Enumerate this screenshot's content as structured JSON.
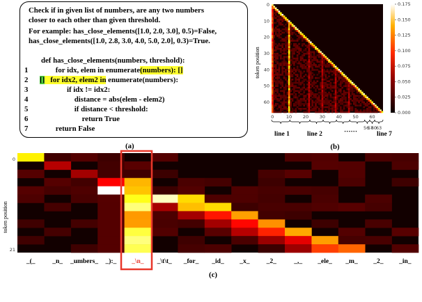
{
  "panel_a": {
    "caption": "(a)",
    "description_lines": [
      "Check if in given list of numbers, are any two numbers",
      "closer to each other than given threshold.",
      "For example: has_close_elements([1.0, 2.0, 3.0], 0.5)=False,",
      "has_close_elements([1.0, 2.8, 3.0, 4.0, 5.0, 2.0], 0.3)=True."
    ],
    "def_line": "def has_close_elements(numbers, threshold):",
    "code_lines": [
      {
        "num": "1",
        "pre": "    for idx, elem in enumerate",
        "hl": "(numbers): []",
        "post": ""
      },
      {
        "num": "2",
        "pre": "",
        "hl": "[]   for idx2, elem2 in",
        "post": " enumerate(numbers):"
      },
      {
        "num": "3",
        "text": "          if idx != idx2:"
      },
      {
        "num": "4",
        "text": "              distance = abs(elem - elem2)"
      },
      {
        "num": "5",
        "text": "              if distance < threshold:"
      },
      {
        "num": "6",
        "text": "                  return True"
      },
      {
        "num": "7",
        "text": "    return False"
      }
    ]
  },
  "panel_b": {
    "caption": "(b)",
    "ylabel": "token position",
    "x_ticks": [
      "0",
      "10",
      "20",
      "30",
      "40",
      "50",
      "60"
    ],
    "y_ticks": [
      "0",
      "10",
      "20",
      "30",
      "40",
      "50",
      "60"
    ],
    "colorbar_ticks": [
      "0.000",
      "0.025",
      "0.050",
      "0.075",
      "0.100",
      "0.125",
      "0.150",
      "0.175"
    ],
    "line_labels": [
      "line 1",
      "line 2",
      "······",
      "line 7"
    ],
    "small_ticks": [
      "56",
      "57",
      "60",
      "63"
    ]
  },
  "panel_c": {
    "caption": "(c)",
    "ylabel": "token position",
    "y_ticks": [
      "0",
      "21"
    ],
    "tokens": [
      "_(_",
      "_n_",
      "_umbers_",
      "_):_",
      "_\\n_",
      "_\\t\\t_",
      "_for_",
      "_id_",
      "_x_",
      "_2_",
      "_,_",
      "_ele_",
      "_m_",
      "_2_",
      "_in_"
    ],
    "highlighted_token": "_\\n_",
    "highlight_color": "#e8372a"
  },
  "chart_data": [
    {
      "type": "heatmap",
      "title": "",
      "ylabel": "token position",
      "x_range": [
        0,
        67
      ],
      "y_range": [
        0,
        67
      ],
      "color_range": [
        0.0,
        0.175
      ],
      "colormap": "hot",
      "structure": "strong diagonal (self/previous token) plus vertical bright stripe at token ~10 (line 1 newline) and weaker stripes at later newlines"
    },
    {
      "type": "heatmap",
      "title": "",
      "ylabel": "token position",
      "columns": [
        "_(_",
        "_n_",
        "_umbers_",
        "_):_",
        "_\\n_",
        "_\\t\\t_",
        "_for_",
        "_id_",
        "_x_",
        "_2_",
        "_,_",
        "_ele_",
        "_m_",
        "_2_",
        "_in_"
      ],
      "y_range": [
        0,
        21
      ],
      "colormap": "hot",
      "structure": "newline column '_\\n_' is bright for most rows; a descending diagonal band covers later tokens"
    }
  ]
}
